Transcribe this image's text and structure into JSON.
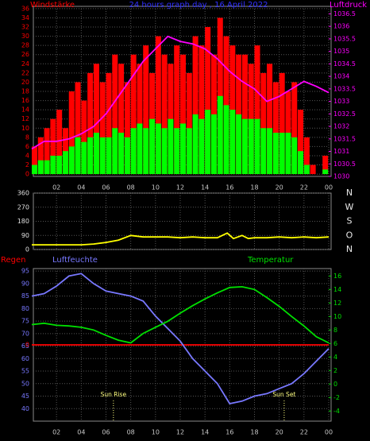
{
  "chart_data": [
    {
      "type": "bar",
      "title": "24 hours graph day , 16 April 2022",
      "y_label": "Windstärke",
      "y2_label": "Luftdruck",
      "xlim": [
        0,
        24
      ],
      "xticks": [
        {
          "value": 2,
          "label": "02"
        },
        {
          "value": 4,
          "label": "04"
        },
        {
          "value": 6,
          "label": "06"
        },
        {
          "value": 8,
          "label": "08"
        },
        10,
        12,
        14,
        16,
        18,
        20,
        22,
        {
          "value": 24,
          "label": "00"
        }
      ],
      "ylim": [
        -0.5,
        36.5
      ],
      "yticks": [
        0,
        2,
        4,
        6,
        8,
        10,
        12,
        14,
        16,
        18,
        20,
        22,
        24,
        26,
        28,
        30,
        32,
        34,
        36
      ],
      "y2lim": [
        1030,
        1036.8
      ],
      "y2ticks": [
        1030,
        1030.5,
        1031,
        1031.5,
        1032,
        1032.5,
        1033,
        1033.5,
        1034,
        1034.5,
        1035,
        1035.5,
        1036,
        1036.5
      ],
      "label_colors": {
        "y": "#ff0000",
        "title": "#3030ff",
        "y2": "#ff00ff"
      },
      "series": [
        {
          "kind": "bar",
          "color": "#ff0000",
          "x": [
            0,
            0.5,
            1,
            1.5,
            2,
            2.5,
            3,
            3.5,
            4,
            4.5,
            5,
            5.5,
            6,
            6.5,
            7,
            7.5,
            8,
            8.5,
            9,
            9.5,
            10,
            10.5,
            11,
            11.5,
            12,
            12.5,
            13,
            13.5,
            14,
            14.5,
            15,
            15.5,
            16,
            16.5,
            17,
            17.5,
            18,
            18.5,
            19,
            19.5,
            20,
            20.5,
            21,
            21.5,
            22,
            22.5,
            23,
            23.5
          ],
          "values": [
            6,
            8,
            10,
            12,
            14,
            10,
            18,
            20,
            16,
            22,
            24,
            20,
            22,
            26,
            24,
            20,
            26,
            24,
            28,
            22,
            30,
            26,
            24,
            28,
            26,
            22,
            30,
            28,
            32,
            26,
            34,
            30,
            28,
            26,
            26,
            24,
            28,
            22,
            24,
            20,
            22,
            18,
            20,
            14,
            8,
            2,
            0,
            4
          ]
        },
        {
          "kind": "bar",
          "color": "#00ff00",
          "x": [
            0,
            0.5,
            1,
            1.5,
            2,
            2.5,
            3,
            3.5,
            4,
            4.5,
            5,
            5.5,
            6,
            6.5,
            7,
            7.5,
            8,
            8.5,
            9,
            9.5,
            10,
            10.5,
            11,
            11.5,
            12,
            12.5,
            13,
            13.5,
            14,
            14.5,
            15,
            15.5,
            16,
            16.5,
            17,
            17.5,
            18,
            18.5,
            19,
            19.5,
            20,
            20.5,
            21,
            21.5,
            22,
            22.5,
            23,
            23.5
          ],
          "values": [
            2,
            3,
            3,
            4,
            4,
            5,
            6,
            8,
            7,
            8,
            9,
            8,
            8,
            10,
            9,
            8,
            10,
            11,
            10,
            12,
            11,
            10,
            12,
            10,
            11,
            10,
            13,
            12,
            14,
            13,
            17,
            15,
            14,
            13,
            12,
            12,
            12,
            10,
            10,
            9,
            9,
            9,
            8,
            5,
            2,
            0,
            0,
            1
          ]
        },
        {
          "kind": "line",
          "axis": "y2",
          "color": "#ff00ff",
          "x": [
            0,
            1,
            2,
            3,
            4,
            5,
            6,
            7,
            8,
            9,
            10,
            11,
            12,
            13,
            14,
            15,
            16,
            17,
            18,
            19,
            20,
            21,
            22,
            23,
            24
          ],
          "values": [
            1031.1,
            1031.4,
            1031.4,
            1031.5,
            1031.7,
            1032,
            1032.5,
            1033.2,
            1033.9,
            1034.6,
            1035.1,
            1035.6,
            1035.4,
            1035.3,
            1035.1,
            1034.7,
            1034.2,
            1033.8,
            1033.5,
            1033,
            1033.2,
            1033.5,
            1033.8,
            1033.6,
            1033.35
          ]
        }
      ]
    },
    {
      "type": "line",
      "xlim": [
        0,
        24
      ],
      "xticks": [
        2,
        4,
        6,
        8,
        10,
        12,
        14,
        16,
        18,
        20,
        22,
        24
      ],
      "xtick_labels": false,
      "ylim": [
        0,
        360
      ],
      "yticks": [
        0,
        90,
        180,
        270,
        360
      ],
      "compass": [
        "N",
        "W",
        "S",
        "O",
        "N"
      ],
      "series": [
        {
          "kind": "line",
          "color": "#ffff00",
          "x": [
            0,
            1,
            2,
            3,
            4,
            5,
            6,
            7,
            8,
            9,
            10,
            11,
            12,
            13,
            14,
            15,
            15.8,
            16.3,
            17,
            17.5,
            18,
            19,
            20,
            21,
            22,
            23,
            24
          ],
          "values": [
            30,
            30,
            30,
            30,
            30,
            35,
            45,
            60,
            90,
            80,
            80,
            80,
            75,
            80,
            75,
            75,
            105,
            70,
            90,
            70,
            75,
            75,
            80,
            75,
            80,
            75,
            80
          ]
        }
      ]
    },
    {
      "type": "line",
      "y_label": "Luftfeuchte",
      "y2_label": "Temperatur",
      "rain_label": "Regen",
      "label_colors": {
        "y": "#7878ff",
        "y2": "#00e000",
        "rain": "#ff0000"
      },
      "xlim": [
        0,
        24
      ],
      "xticks": [
        {
          "value": 2,
          "label": "02"
        },
        {
          "value": 4,
          "label": "04"
        },
        {
          "value": 6,
          "label": "06"
        },
        {
          "value": 8,
          "label": "08"
        },
        10,
        12,
        14,
        16,
        18,
        20,
        22,
        {
          "value": 24,
          "label": "00"
        }
      ],
      "ylim": [
        35,
        96
      ],
      "yticks": [
        40,
        45,
        50,
        55,
        60,
        65,
        70,
        75,
        80,
        85,
        90,
        95
      ],
      "y2lim": [
        -5.5,
        17.1
      ],
      "y2ticks": [
        -4,
        -2,
        0,
        2,
        4,
        6,
        8,
        10,
        12,
        14,
        16
      ],
      "rainlim": [
        -1,
        1
      ],
      "rainticks": [
        0
      ],
      "annotations": [
        {
          "text": "Sun Rise",
          "x": 6.6
        },
        {
          "text": "Sun Set",
          "x": 20.4
        }
      ],
      "series": [
        {
          "kind": "line",
          "axis": "rain",
          "color": "#ff0000",
          "x": [
            0,
            24
          ],
          "values": [
            0,
            0
          ]
        },
        {
          "kind": "line",
          "color": "#7878ff",
          "x": [
            0,
            1,
            2,
            3,
            4,
            5,
            6,
            7,
            8,
            9,
            10,
            11,
            12,
            13,
            14,
            15,
            16,
            17,
            18,
            19,
            20,
            21,
            22,
            23,
            24
          ],
          "values": [
            85,
            86,
            89,
            93,
            94,
            90,
            87,
            86,
            85,
            83,
            77,
            72,
            67,
            60,
            55,
            50,
            42,
            43,
            45,
            46,
            48,
            50,
            54,
            59,
            64
          ]
        },
        {
          "kind": "line",
          "axis": "y2",
          "color": "#00e000",
          "x": [
            0,
            1,
            2,
            3,
            4,
            5,
            6,
            7,
            8,
            9,
            10,
            11,
            12,
            13,
            14,
            15,
            16,
            17,
            18,
            19,
            20,
            21,
            22,
            23,
            24
          ],
          "values": [
            8.8,
            9,
            8.7,
            8.6,
            8.4,
            8,
            7.2,
            6.5,
            6.1,
            7.5,
            8.4,
            9.3,
            10.5,
            11.6,
            12.6,
            13.5,
            14.3,
            14.4,
            14,
            12.8,
            11.5,
            10,
            8.6,
            7,
            6.1
          ]
        }
      ]
    }
  ]
}
